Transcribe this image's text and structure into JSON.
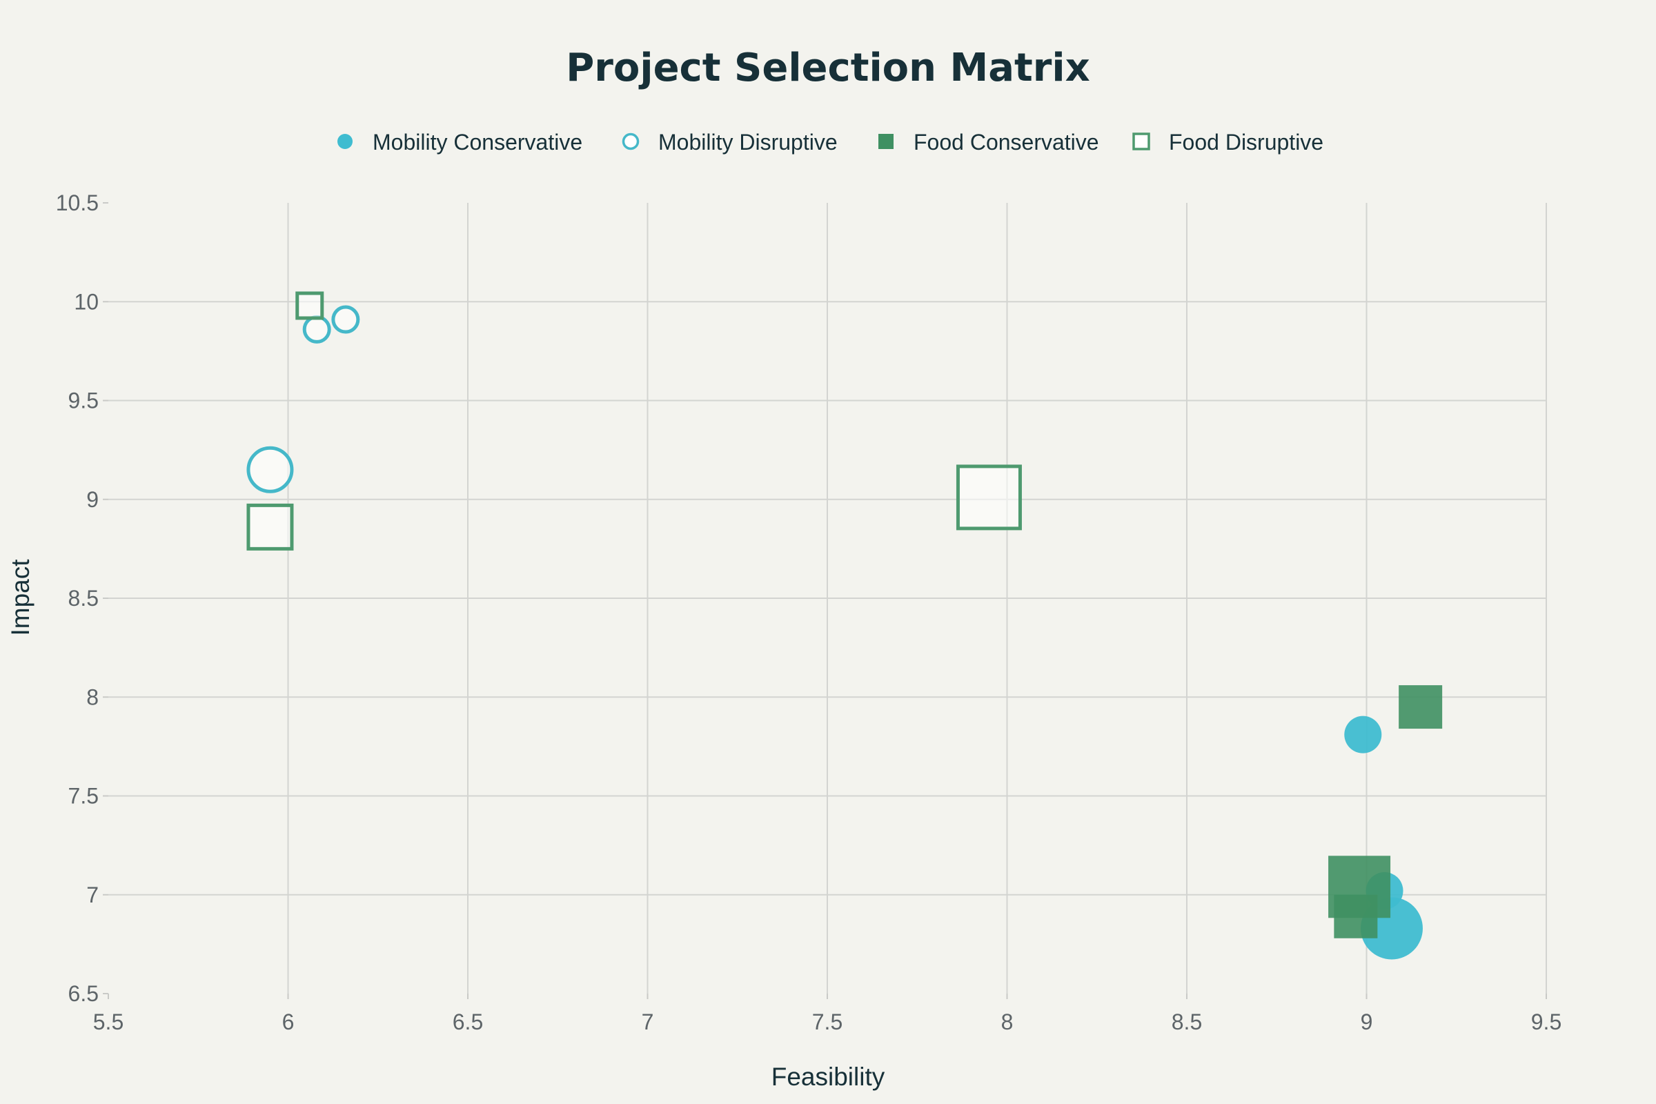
{
  "chart_data": {
    "type": "scatter",
    "title": "Project Selection Matrix",
    "xlabel": "Feasibility",
    "ylabel": "Impact",
    "xlim": [
      5.5,
      9.5
    ],
    "ylim": [
      6.5,
      10.5
    ],
    "xticks": [
      "5.5",
      "6",
      "6.5",
      "7",
      "7.5",
      "8",
      "8.5",
      "9",
      "9.5"
    ],
    "yticks": [
      "6.5",
      "7",
      "7.5",
      "8",
      "8.5",
      "9",
      "9.5",
      "10",
      "10.5"
    ],
    "grid": true,
    "legend_position": "top-center",
    "series": [
      {
        "name": "Mobility Conservative",
        "marker": "circle",
        "filled": true,
        "color": "#3fbcd0",
        "points": [
          {
            "x": 8.99,
            "y": 7.81,
            "size": 3
          },
          {
            "x": 9.05,
            "y": 7.02,
            "size": 3
          },
          {
            "x": 9.07,
            "y": 6.83,
            "size": 5
          }
        ]
      },
      {
        "name": "Mobility Disruptive",
        "marker": "circle",
        "filled": false,
        "color": "#45b8c9",
        "points": [
          {
            "x": 6.16,
            "y": 9.91,
            "size": 2
          },
          {
            "x": 6.08,
            "y": 9.86,
            "size": 2
          },
          {
            "x": 5.95,
            "y": 9.15,
            "size": 3.5
          }
        ]
      },
      {
        "name": "Food Conservative",
        "marker": "square",
        "filled": true,
        "color": "#3f9062",
        "points": [
          {
            "x": 9.15,
            "y": 7.95,
            "size": 3.5
          },
          {
            "x": 8.98,
            "y": 7.04,
            "size": 5
          },
          {
            "x": 8.97,
            "y": 6.89,
            "size": 3.5
          }
        ]
      },
      {
        "name": "Food Disruptive",
        "marker": "square",
        "filled": false,
        "color": "#4e9a6f",
        "points": [
          {
            "x": 6.06,
            "y": 9.98,
            "size": 2
          },
          {
            "x": 5.95,
            "y": 8.86,
            "size": 3.5
          },
          {
            "x": 7.95,
            "y": 9.01,
            "size": 5
          }
        ]
      }
    ]
  }
}
